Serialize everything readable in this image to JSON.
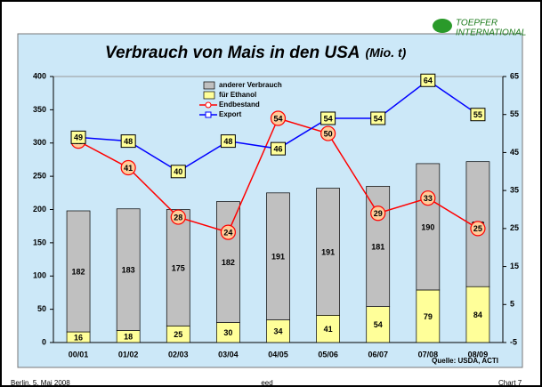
{
  "logo": [
    "TOEPFER",
    "INTERNATIONAL"
  ],
  "footer": {
    "left": "Berlin, 5. Mai 2008",
    "center": "eed",
    "right": "Chart 7"
  },
  "chart_data": {
    "type": "bar",
    "title": "Verbrauch von Mais in den USA",
    "subtitle": "(Mio. t)",
    "source": "Quelle: USDA, ACTI",
    "categories": [
      "00/01",
      "01/02",
      "02/03",
      "03/04",
      "04/05",
      "05/06",
      "06/07",
      "07/08",
      "08/09"
    ],
    "series": [
      {
        "name": "anderer Verbrauch",
        "type": "bar",
        "color": "#c0c0c0",
        "values": [
          182,
          183,
          175,
          182,
          191,
          191,
          181,
          190,
          188
        ]
      },
      {
        "name": "für Ethanol",
        "type": "bar",
        "color": "#ffff99",
        "values": [
          16,
          18,
          25,
          30,
          34,
          41,
          54,
          79,
          84
        ]
      },
      {
        "name": "Endbestand",
        "type": "line",
        "axis": "y2",
        "color": "#ff0000",
        "values": [
          48,
          41,
          28,
          24,
          54,
          50,
          29,
          33,
          25
        ]
      },
      {
        "name": "Export",
        "type": "line",
        "axis": "y2",
        "color": "#0000ff",
        "values": [
          49,
          48,
          40,
          48,
          46,
          54,
          54,
          64,
          55
        ]
      }
    ],
    "stacked": true,
    "ylim": [
      0,
      400
    ],
    "yticks": [
      0,
      50,
      100,
      150,
      200,
      250,
      300,
      350,
      400
    ],
    "y2lim": [
      -5,
      65
    ],
    "y2ticks": [
      -5,
      5,
      15,
      25,
      35,
      45,
      55,
      65
    ]
  }
}
